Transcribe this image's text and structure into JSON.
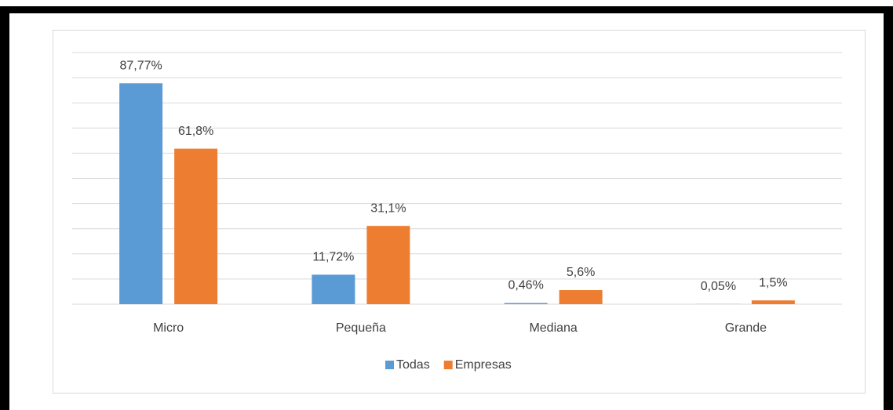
{
  "chart_data": {
    "type": "bar",
    "categories": [
      "Micro",
      "Pequeña",
      "Mediana",
      "Grande"
    ],
    "series": [
      {
        "name": "Todas",
        "color": "#5b9bd5",
        "values": [
          87.77,
          11.72,
          0.46,
          0.05
        ],
        "value_labels": [
          "87,77%",
          "11,72%",
          "0,46%",
          "0,05%"
        ]
      },
      {
        "name": "Empresas",
        "color": "#ed7d31",
        "values": [
          61.8,
          31.1,
          5.6,
          1.5
        ],
        "value_labels": [
          "61,8%",
          "31,1%",
          "5,6%",
          "1,5%"
        ]
      }
    ],
    "ylim": [
      0,
      100
    ],
    "yticks": [
      0,
      10,
      20,
      30,
      40,
      50,
      60,
      70,
      80,
      90,
      100
    ],
    "grid": true,
    "legend": "bottom"
  }
}
